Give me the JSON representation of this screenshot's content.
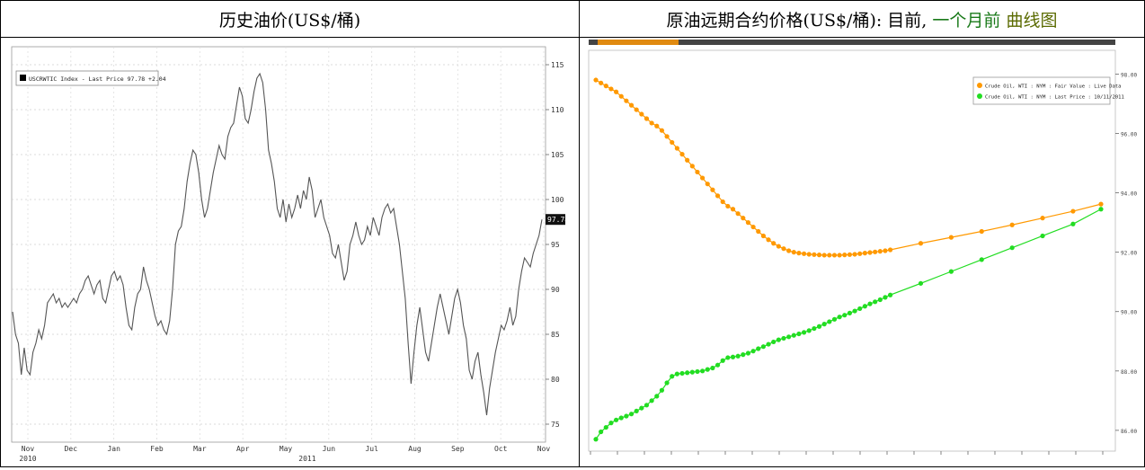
{
  "header": {
    "left_title": "历史油价(US$/桶)",
    "right_title_prefix": "原油远期合约价格(US$/桶): 目前,",
    "right_title_green": "一个月前",
    "right_title_olive": "曲线图"
  },
  "chart_data": [
    {
      "type": "line",
      "legend": [
        "USCRWTIC Index - Last Price  97.78  +2.04"
      ],
      "last_value_label": "97.78",
      "y_ticks": [
        "115",
        "110",
        "105",
        "100",
        "95",
        "90",
        "85",
        "80",
        "75"
      ],
      "y_tick_values": [
        115,
        110,
        105,
        100,
        95,
        90,
        85,
        80,
        75
      ],
      "ylim": [
        73,
        117
      ],
      "x_month_labels": [
        "Nov",
        "Dec",
        "Jan",
        "Feb",
        "Mar",
        "Apr",
        "May",
        "Jun",
        "Jul",
        "Aug",
        "Sep",
        "Oct",
        "Nov"
      ],
      "x_year_labels": [
        "2010",
        "2011"
      ],
      "series": [
        {
          "values": [
            87.5,
            85,
            84,
            80.5,
            83.5,
            81,
            80.5,
            83,
            84,
            85.5,
            84.5,
            86,
            88.5,
            89,
            89.5,
            88.5,
            89,
            88,
            88.5,
            88,
            88.5,
            89,
            88.5,
            89.5,
            90,
            91,
            91.5,
            90.5,
            89.5,
            90.5,
            91,
            89,
            88.5,
            90,
            91.5,
            92,
            91,
            91.5,
            90.5,
            88,
            86,
            85.5,
            88,
            89.5,
            90,
            92.5,
            91,
            90,
            88.5,
            87,
            86,
            86.5,
            85.5,
            85,
            86.5,
            90,
            95,
            96.5,
            97,
            99,
            102,
            104,
            105.5,
            105,
            103,
            100,
            98,
            99,
            101,
            103,
            104.5,
            106,
            105,
            104.5,
            107,
            108,
            108.5,
            110.5,
            112.5,
            111.5,
            109,
            108.5,
            110,
            112,
            113.5,
            114,
            113,
            110,
            105.5,
            104,
            102,
            99,
            98,
            100,
            97.5,
            99.5,
            98,
            99,
            100.5,
            99,
            101,
            100,
            102.5,
            101,
            98,
            99,
            100,
            98,
            97,
            96,
            94,
            93.5,
            95,
            93,
            91,
            92,
            95,
            96,
            97.5,
            96,
            95,
            95.5,
            97,
            96,
            98,
            97,
            96,
            98,
            99,
            99.5,
            98.5,
            99,
            97,
            95,
            92,
            89,
            84,
            79.5,
            83,
            86,
            88,
            85.5,
            83,
            82,
            84,
            86,
            88,
            89.5,
            88,
            86.5,
            85,
            87,
            89,
            90,
            88.5,
            86,
            84.5,
            81,
            80,
            82,
            83,
            80.5,
            78.5,
            76,
            79,
            81,
            83,
            84.5,
            86,
            85.5,
            86.5,
            88,
            86,
            87,
            90,
            92,
            93.5,
            93,
            92.5,
            94,
            95,
            96,
            97.78
          ]
        }
      ]
    },
    {
      "type": "line",
      "legend": [
        "Crude Oil, WTI : NYM : Fair Value : Live Data",
        "Crude Oil, WTI : NYM : Last Price : 10/11/2011"
      ],
      "y_ticks": [
        "98.00",
        "96.00",
        "94.00",
        "92.00",
        "90.00",
        "88.00",
        "86.00"
      ],
      "y_tick_values": [
        98,
        96,
        94,
        92,
        90,
        88,
        86
      ],
      "ylim": [
        85.3,
        98.8
      ],
      "colors": {
        "current": "#ff9900",
        "month_ago": "#22dd22"
      },
      "series": [
        {
          "name": "Crude Oil, WTI : NYM : Fair Value : Live Data",
          "values": [
            97.8,
            97.7,
            97.6,
            97.5,
            97.4,
            97.25,
            97.1,
            96.95,
            96.8,
            96.65,
            96.5,
            96.35,
            96.25,
            96.1,
            95.9,
            95.7,
            95.5,
            95.3,
            95.1,
            94.9,
            94.7,
            94.5,
            94.3,
            94.1,
            93.9,
            93.7,
            93.55,
            93.45,
            93.3,
            93.15,
            93.0,
            92.85,
            92.7,
            92.55,
            92.42,
            92.3,
            92.2,
            92.12,
            92.05,
            92.0,
            91.97,
            91.95,
            91.93,
            91.92,
            91.91,
            91.9,
            91.9,
            91.9,
            91.9,
            91.91,
            91.92,
            91.93,
            91.95,
            91.97,
            91.99,
            92.01,
            92.03,
            92.05,
            92.08,
            92.3,
            92.5,
            92.7,
            92.92,
            93.15,
            93.38,
            93.62
          ],
          "x_steps": [
            0,
            1,
            2,
            3,
            4,
            5,
            6,
            7,
            8,
            9,
            10,
            11,
            12,
            13,
            14,
            15,
            16,
            17,
            18,
            19,
            20,
            21,
            22,
            23,
            24,
            25,
            26,
            27,
            28,
            29,
            30,
            31,
            32,
            33,
            34,
            35,
            36,
            37,
            38,
            39,
            40,
            41,
            42,
            43,
            44,
            45,
            46,
            47,
            48,
            49,
            50,
            51,
            52,
            53,
            54,
            55,
            56,
            57,
            58,
            64,
            70,
            76,
            82,
            88,
            94,
            99.5
          ]
        },
        {
          "name": "Crude Oil, WTI : NYM : Last Price : 10/11/2011",
          "values": [
            85.7,
            85.95,
            86.1,
            86.25,
            86.35,
            86.42,
            86.48,
            86.55,
            86.65,
            86.75,
            86.85,
            87.0,
            87.15,
            87.35,
            87.6,
            87.82,
            87.9,
            87.92,
            87.94,
            87.96,
            87.98,
            88.0,
            88.05,
            88.1,
            88.2,
            88.35,
            88.45,
            88.47,
            88.5,
            88.55,
            88.6,
            88.67,
            88.75,
            88.82,
            88.9,
            88.98,
            89.05,
            89.1,
            89.15,
            89.2,
            89.25,
            89.3,
            89.36,
            89.43,
            89.5,
            89.58,
            89.66,
            89.74,
            89.82,
            89.88,
            89.95,
            90.02,
            90.1,
            90.18,
            90.26,
            90.33,
            90.4,
            90.48,
            90.56,
            90.95,
            91.35,
            91.75,
            92.15,
            92.55,
            92.95,
            93.45
          ],
          "x_steps": [
            0,
            1,
            2,
            3,
            4,
            5,
            6,
            7,
            8,
            9,
            10,
            11,
            12,
            13,
            14,
            15,
            16,
            17,
            18,
            19,
            20,
            21,
            22,
            23,
            24,
            25,
            26,
            27,
            28,
            29,
            30,
            31,
            32,
            33,
            34,
            35,
            36,
            37,
            38,
            39,
            40,
            41,
            42,
            43,
            44,
            45,
            46,
            47,
            48,
            49,
            50,
            51,
            52,
            53,
            54,
            55,
            56,
            57,
            58,
            64,
            70,
            76,
            82,
            88,
            94,
            99.5
          ]
        }
      ]
    }
  ]
}
